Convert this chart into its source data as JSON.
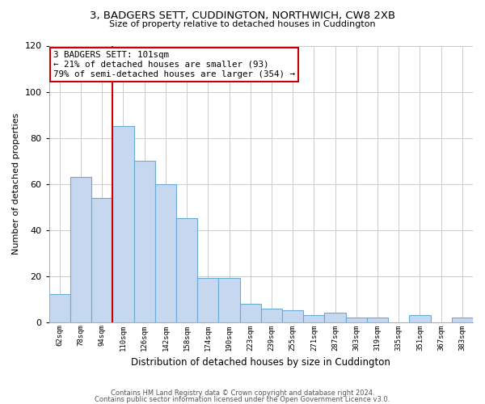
{
  "title": "3, BADGERS SETT, CUDDINGTON, NORTHWICH, CW8 2XB",
  "subtitle": "Size of property relative to detached houses in Cuddington",
  "xlabel": "Distribution of detached houses by size in Cuddington",
  "ylabel": "Number of detached properties",
  "bar_labels": [
    "62sqm",
    "78sqm",
    "94sqm",
    "110sqm",
    "126sqm",
    "142sqm",
    "158sqm",
    "174sqm",
    "190sqm",
    "223sqm",
    "239sqm",
    "255sqm",
    "271sqm",
    "287sqm",
    "303sqm",
    "319sqm",
    "335sqm",
    "351sqm",
    "367sqm",
    "383sqm"
  ],
  "bar_values": [
    12,
    63,
    54,
    85,
    70,
    60,
    45,
    19,
    19,
    8,
    6,
    5,
    3,
    4,
    2,
    2,
    0,
    3,
    0,
    2
  ],
  "bar_color": "#c5d8f0",
  "bar_edge_color": "#6aaad4",
  "ylim": [
    0,
    120
  ],
  "yticks": [
    0,
    20,
    40,
    60,
    80,
    100,
    120
  ],
  "vline_color": "#cc0000",
  "annotation_title": "3 BADGERS SETT: 101sqm",
  "annotation_line1": "← 21% of detached houses are smaller (93)",
  "annotation_line2": "79% of semi-detached houses are larger (354) →",
  "annotation_box_color": "#ffffff",
  "annotation_box_edge": "#cc0000",
  "footer1": "Contains HM Land Registry data © Crown copyright and database right 2024.",
  "footer2": "Contains public sector information licensed under the Open Government Licence v3.0.",
  "bg_color": "#ffffff",
  "grid_color": "#cccccc"
}
